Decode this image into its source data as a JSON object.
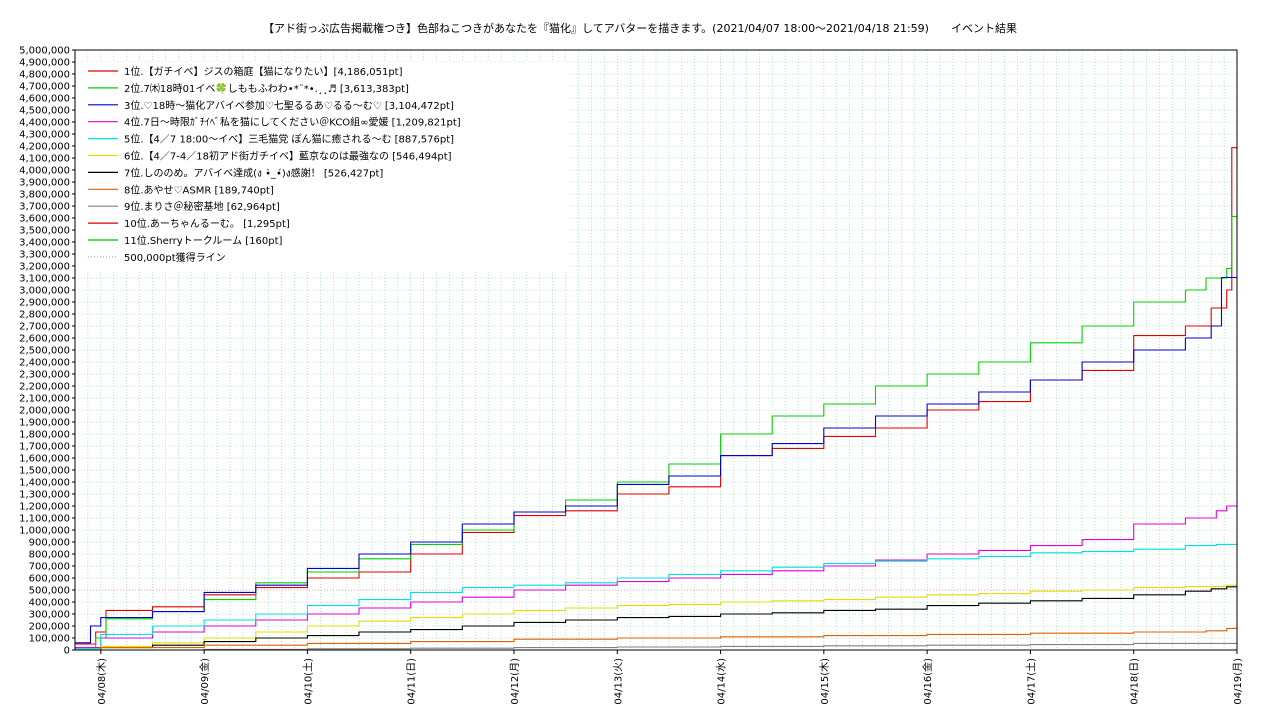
{
  "chart_data": {
    "type": "line",
    "title": "【アド街っぷ広告掲載権つき】色部ねこつきがあなたを『猫化』してアバターを描きます。(2021/04/07 18:00〜2021/04/18 21:59)　　イベント結果",
    "xlabel": "",
    "ylabel": "",
    "ylim": [
      0,
      5000000
    ],
    "y_tick_step": 100000,
    "x_ticks": [
      "04/08(木)",
      "04/09(金)",
      "04/10(土)",
      "04/11(日)",
      "04/12(月)",
      "04/13(火)",
      "04/14(水)",
      "04/15(木)",
      "04/16(金)",
      "04/17(土)",
      "04/18(日)",
      "04/19(月)"
    ],
    "xlim_days": [
      -0.25,
      11.0
    ],
    "grid": true,
    "legend_position": "top-left",
    "threshold": {
      "name": "500,000pt獲得ライン",
      "value": 500000,
      "color": "#e0a0a0"
    },
    "series": [
      {
        "name": "1位.【ガチイベ】ジスの箱庭【猫になりたい】[4,186,051pt]",
        "color": "#e00000",
        "points": [
          [
            -0.25,
            50000
          ],
          [
            -0.05,
            150000
          ],
          [
            0.05,
            330000
          ],
          [
            0.5,
            360000
          ],
          [
            1.0,
            460000
          ],
          [
            1.5,
            520000
          ],
          [
            2.0,
            600000
          ],
          [
            2.5,
            650000
          ],
          [
            3.0,
            800000
          ],
          [
            3.5,
            980000
          ],
          [
            4.0,
            1120000
          ],
          [
            4.5,
            1160000
          ],
          [
            5.0,
            1300000
          ],
          [
            5.5,
            1360000
          ],
          [
            6.0,
            1620000
          ],
          [
            6.5,
            1680000
          ],
          [
            7.0,
            1780000
          ],
          [
            7.5,
            1850000
          ],
          [
            8.0,
            2000000
          ],
          [
            8.5,
            2070000
          ],
          [
            9.0,
            2250000
          ],
          [
            9.5,
            2330000
          ],
          [
            10.0,
            2620000
          ],
          [
            10.5,
            2700000
          ],
          [
            10.75,
            2850000
          ],
          [
            10.9,
            3000000
          ],
          [
            10.95,
            4186051
          ],
          [
            11.0,
            4186051
          ]
        ]
      },
      {
        "name": "2位.7㈭18時01イベ🍀しももふわわ•*¨*•.¸¸♬ [3,613,383pt]",
        "color": "#00d000",
        "points": [
          [
            -0.25,
            20000
          ],
          [
            -0.05,
            100000
          ],
          [
            0.05,
            260000
          ],
          [
            0.5,
            320000
          ],
          [
            1.0,
            420000
          ],
          [
            1.5,
            560000
          ],
          [
            2.0,
            650000
          ],
          [
            2.5,
            760000
          ],
          [
            3.0,
            880000
          ],
          [
            3.5,
            1000000
          ],
          [
            4.0,
            1150000
          ],
          [
            4.5,
            1250000
          ],
          [
            5.0,
            1400000
          ],
          [
            5.5,
            1550000
          ],
          [
            6.0,
            1800000
          ],
          [
            6.5,
            1950000
          ],
          [
            7.0,
            2050000
          ],
          [
            7.5,
            2200000
          ],
          [
            8.0,
            2300000
          ],
          [
            8.5,
            2400000
          ],
          [
            9.0,
            2560000
          ],
          [
            9.5,
            2700000
          ],
          [
            10.0,
            2900000
          ],
          [
            10.5,
            3000000
          ],
          [
            10.7,
            3100000
          ],
          [
            10.9,
            3180000
          ],
          [
            10.95,
            3613383
          ],
          [
            11.0,
            3613383
          ]
        ]
      },
      {
        "name": "3位.♡18時〜猫化アバイベ参加♡七聖るるあ♡るる〜む♡ [3,104,472pt]",
        "color": "#0000d0",
        "points": [
          [
            -0.25,
            60000
          ],
          [
            -0.1,
            200000
          ],
          [
            0.0,
            270000
          ],
          [
            0.5,
            320000
          ],
          [
            1.0,
            480000
          ],
          [
            1.5,
            540000
          ],
          [
            2.0,
            680000
          ],
          [
            2.5,
            800000
          ],
          [
            3.0,
            900000
          ],
          [
            3.5,
            1050000
          ],
          [
            4.0,
            1150000
          ],
          [
            4.5,
            1200000
          ],
          [
            5.0,
            1380000
          ],
          [
            5.5,
            1450000
          ],
          [
            6.0,
            1620000
          ],
          [
            6.5,
            1720000
          ],
          [
            7.0,
            1850000
          ],
          [
            7.5,
            1950000
          ],
          [
            8.0,
            2050000
          ],
          [
            8.5,
            2150000
          ],
          [
            9.0,
            2250000
          ],
          [
            9.5,
            2400000
          ],
          [
            10.0,
            2500000
          ],
          [
            10.5,
            2600000
          ],
          [
            10.75,
            2700000
          ],
          [
            10.85,
            3104472
          ],
          [
            11.0,
            3104472
          ]
        ]
      },
      {
        "name": "4位.7日〜時限ｶﾞﾁｲﾍﾞ私を猫にしてください＠KCO組∞愛媛 [1,209,821pt]",
        "color": "#e000e0",
        "points": [
          [
            -0.25,
            20000
          ],
          [
            0.0,
            100000
          ],
          [
            0.5,
            150000
          ],
          [
            1.0,
            200000
          ],
          [
            1.5,
            250000
          ],
          [
            2.0,
            300000
          ],
          [
            2.5,
            350000
          ],
          [
            3.0,
            400000
          ],
          [
            3.5,
            440000
          ],
          [
            4.0,
            500000
          ],
          [
            4.5,
            540000
          ],
          [
            5.0,
            570000
          ],
          [
            5.5,
            600000
          ],
          [
            6.0,
            630000
          ],
          [
            6.5,
            660000
          ],
          [
            7.0,
            700000
          ],
          [
            7.5,
            750000
          ],
          [
            8.0,
            800000
          ],
          [
            8.5,
            830000
          ],
          [
            9.0,
            870000
          ],
          [
            9.5,
            920000
          ],
          [
            10.0,
            1050000
          ],
          [
            10.5,
            1100000
          ],
          [
            10.8,
            1160000
          ],
          [
            10.9,
            1200000
          ],
          [
            11.0,
            1209821
          ]
        ]
      },
      {
        "name": "5位.【4／7 18:00〜イベ】三毛猫党 ぽん猫に癒される〜む [887,576pt]",
        "color": "#00e0e0",
        "points": [
          [
            -0.25,
            10000
          ],
          [
            0.0,
            130000
          ],
          [
            0.5,
            200000
          ],
          [
            1.0,
            250000
          ],
          [
            1.5,
            300000
          ],
          [
            2.0,
            370000
          ],
          [
            2.5,
            420000
          ],
          [
            3.0,
            480000
          ],
          [
            3.5,
            520000
          ],
          [
            4.0,
            540000
          ],
          [
            4.5,
            560000
          ],
          [
            5.0,
            600000
          ],
          [
            5.5,
            630000
          ],
          [
            6.0,
            660000
          ],
          [
            6.5,
            690000
          ],
          [
            7.0,
            720000
          ],
          [
            7.5,
            740000
          ],
          [
            8.0,
            760000
          ],
          [
            8.5,
            780000
          ],
          [
            9.0,
            810000
          ],
          [
            9.5,
            820000
          ],
          [
            10.0,
            840000
          ],
          [
            10.5,
            870000
          ],
          [
            10.8,
            880000
          ],
          [
            11.0,
            887576
          ]
        ]
      },
      {
        "name": "6位.【4／7-4／18初アド街ガチイベ】藍京なのは最強なの [546,494pt]",
        "color": "#e0e000",
        "points": [
          [
            -0.25,
            0
          ],
          [
            0.0,
            30000
          ],
          [
            0.5,
            60000
          ],
          [
            1.0,
            100000
          ],
          [
            1.5,
            150000
          ],
          [
            2.0,
            200000
          ],
          [
            2.5,
            240000
          ],
          [
            3.0,
            270000
          ],
          [
            3.5,
            300000
          ],
          [
            4.0,
            330000
          ],
          [
            4.5,
            350000
          ],
          [
            5.0,
            370000
          ],
          [
            5.5,
            380000
          ],
          [
            6.0,
            400000
          ],
          [
            6.5,
            410000
          ],
          [
            7.0,
            420000
          ],
          [
            7.5,
            440000
          ],
          [
            8.0,
            460000
          ],
          [
            8.5,
            470000
          ],
          [
            9.0,
            490000
          ],
          [
            9.5,
            500000
          ],
          [
            10.0,
            520000
          ],
          [
            10.5,
            530000
          ],
          [
            10.9,
            540000
          ],
          [
            11.0,
            546494
          ]
        ]
      },
      {
        "name": "7位.しののめ。アバイベ達成(ง •̀_•́)ง感謝！ [526,427pt]",
        "color": "#000000",
        "points": [
          [
            -0.25,
            0
          ],
          [
            0.0,
            20000
          ],
          [
            0.5,
            40000
          ],
          [
            1.0,
            70000
          ],
          [
            1.5,
            100000
          ],
          [
            2.0,
            120000
          ],
          [
            2.5,
            150000
          ],
          [
            3.0,
            170000
          ],
          [
            3.5,
            200000
          ],
          [
            4.0,
            230000
          ],
          [
            4.5,
            250000
          ],
          [
            5.0,
            270000
          ],
          [
            5.5,
            280000
          ],
          [
            6.0,
            300000
          ],
          [
            6.5,
            310000
          ],
          [
            7.0,
            330000
          ],
          [
            7.5,
            340000
          ],
          [
            8.0,
            370000
          ],
          [
            8.5,
            390000
          ],
          [
            9.0,
            410000
          ],
          [
            9.5,
            430000
          ],
          [
            10.0,
            460000
          ],
          [
            10.5,
            490000
          ],
          [
            10.75,
            510000
          ],
          [
            10.9,
            526427
          ],
          [
            11.0,
            526427
          ]
        ]
      },
      {
        "name": "8位.あやせ♡ASMR [189,740pt]",
        "color": "#e06000",
        "points": [
          [
            -0.25,
            0
          ],
          [
            0.0,
            20000
          ],
          [
            1.0,
            40000
          ],
          [
            2.0,
            55000
          ],
          [
            3.0,
            70000
          ],
          [
            4.0,
            90000
          ],
          [
            5.0,
            100000
          ],
          [
            6.0,
            110000
          ],
          [
            7.0,
            120000
          ],
          [
            8.0,
            130000
          ],
          [
            9.0,
            140000
          ],
          [
            10.0,
            150000
          ],
          [
            10.7,
            160000
          ],
          [
            10.9,
            180000
          ],
          [
            11.0,
            189740
          ]
        ]
      },
      {
        "name": "9位.まりさ＠秘密基地 [62,964pt]",
        "color": "#808080",
        "points": [
          [
            -0.25,
            0
          ],
          [
            1.0,
            5000
          ],
          [
            2.0,
            10000
          ],
          [
            3.0,
            15000
          ],
          [
            4.0,
            20000
          ],
          [
            5.0,
            25000
          ],
          [
            6.0,
            30000
          ],
          [
            7.0,
            35000
          ],
          [
            8.0,
            40000
          ],
          [
            9.0,
            45000
          ],
          [
            10.0,
            55000
          ],
          [
            11.0,
            62964
          ]
        ]
      },
      {
        "name": "10位.あーちゃんるーむ。 [1,295pt]",
        "color": "#d00000",
        "points": [
          [
            -0.25,
            0
          ],
          [
            11.0,
            1295
          ]
        ]
      },
      {
        "name": "11位.Sherryトークルーム [160pt]",
        "color": "#00c000",
        "points": [
          [
            -0.25,
            0
          ],
          [
            11.0,
            160
          ]
        ]
      }
    ]
  }
}
